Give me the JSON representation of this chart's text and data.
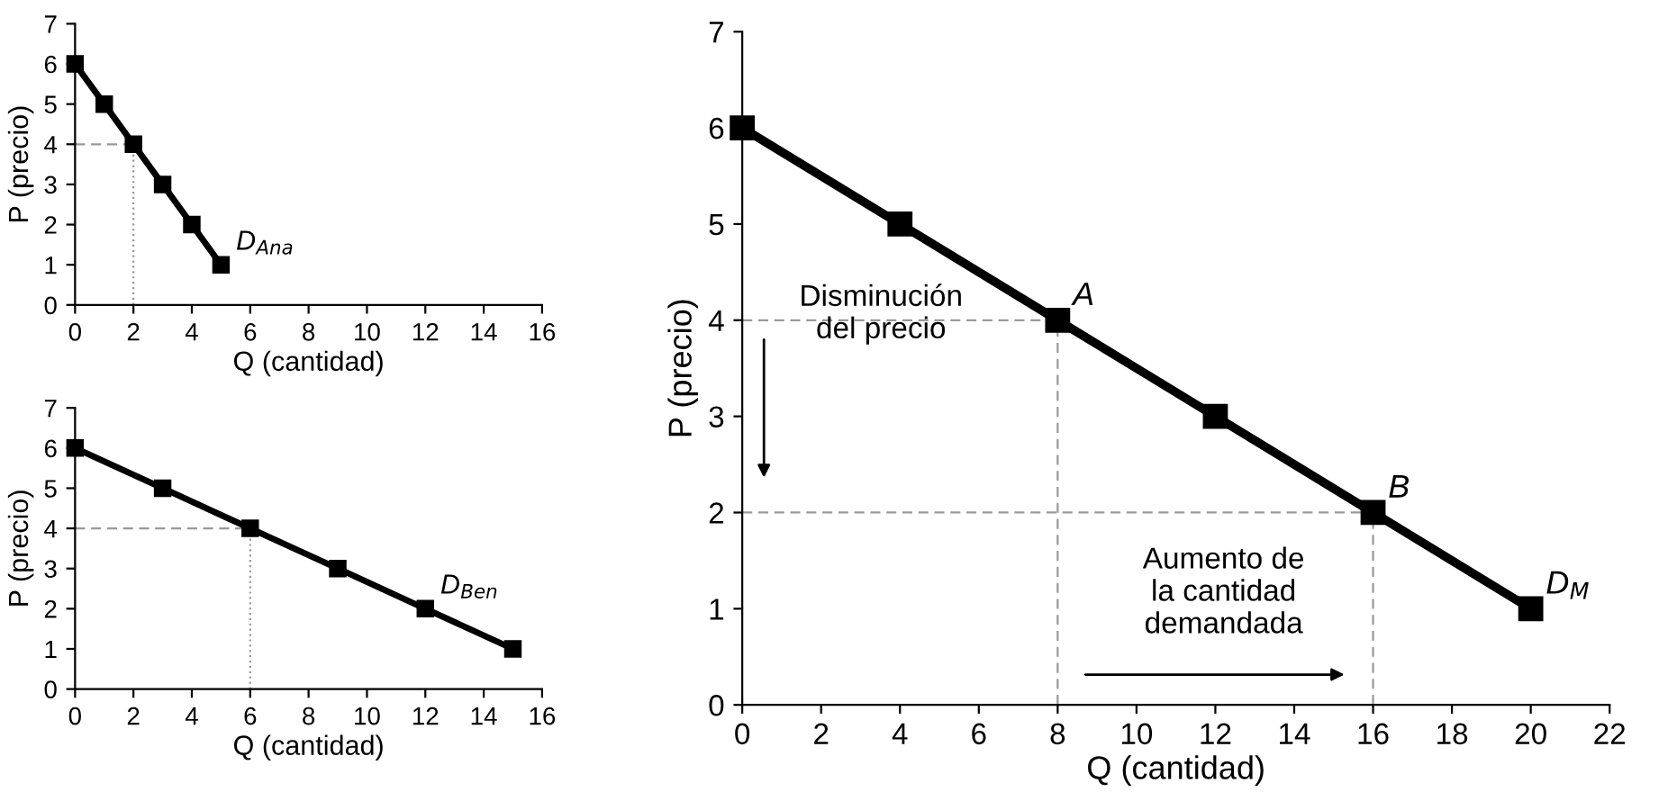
{
  "chart_data": [
    {
      "type": "line",
      "xlabel": "Q (cantidad)",
      "ylabel": "P (precio)",
      "x": [
        0,
        1,
        2,
        3,
        4,
        5
      ],
      "series": [
        {
          "color": "#000000",
          "values": [
            6,
            5,
            4,
            3,
            2,
            1
          ]
        }
      ],
      "marker": "square",
      "xlim": [
        0,
        16
      ],
      "xticks": [
        0,
        2,
        4,
        6,
        8,
        10,
        12,
        14,
        16
      ],
      "ylim": [
        0,
        7
      ],
      "yticks": [
        0,
        1,
        2,
        3,
        4,
        5,
        6,
        7
      ],
      "ref_lines": [
        {
          "axis": "y",
          "value": 4,
          "line_style": "dashed"
        },
        {
          "axis": "x",
          "value": 2,
          "line_style": "dotted"
        }
      ],
      "annotations": [
        {
          "text": "D$_{Ana}$",
          "x": 5,
          "y": 1
        }
      ]
    },
    {
      "type": "line",
      "xlabel": "Q (cantidad)",
      "ylabel": "P (precio)",
      "x": [
        0,
        3,
        6,
        9,
        12,
        15
      ],
      "series": [
        {
          "color": "#000000",
          "values": [
            6,
            5,
            4,
            3,
            2,
            1
          ]
        }
      ],
      "marker": "square",
      "xlim": [
        0,
        16
      ],
      "xticks": [
        0,
        2,
        4,
        6,
        8,
        10,
        12,
        14,
        16
      ],
      "ylim": [
        0,
        7
      ],
      "yticks": [
        0,
        1,
        2,
        3,
        4,
        5,
        6,
        7
      ],
      "ref_lines": [
        {
          "axis": "y",
          "value": 4,
          "line_style": "dashed"
        },
        {
          "axis": "x",
          "value": 6,
          "line_style": "dotted"
        }
      ],
      "annotations": [
        {
          "text": "D$_{Ben}$",
          "x": 12,
          "y": 2
        }
      ]
    },
    {
      "type": "line",
      "xlabel": "Q (cantidad)",
      "ylabel": "P (precio)",
      "x": [
        0,
        4,
        8,
        12,
        16,
        20
      ],
      "series": [
        {
          "color": "#000000",
          "values": [
            6,
            5,
            4,
            3,
            2,
            1
          ]
        }
      ],
      "marker": "square",
      "xlim": [
        0,
        22
      ],
      "xticks": [
        0,
        2,
        4,
        6,
        8,
        10,
        12,
        14,
        16,
        18,
        20,
        22
      ],
      "ylim": [
        0,
        7
      ],
      "yticks": [
        0,
        1,
        2,
        3,
        4,
        5,
        6,
        7
      ],
      "ref_lines": [
        {
          "axis": "y",
          "value": 4,
          "line_style": "dashed"
        },
        {
          "axis": "y",
          "value": 2,
          "line_style": "dashed"
        },
        {
          "axis": "x",
          "value": 8,
          "line_style": "dashed"
        },
        {
          "axis": "x",
          "value": 16,
          "line_style": "dashed"
        }
      ],
      "annotations": [
        {
          "text": "A",
          "x": 8,
          "y": 4
        },
        {
          "text": "B",
          "x": 16,
          "y": 2
        },
        {
          "text": "D$_{M}$",
          "x": 20,
          "y": 1
        },
        "Disminución\ndel precio",
        "Aumento de\nla cantidad\ndemandada"
      ]
    }
  ]
}
